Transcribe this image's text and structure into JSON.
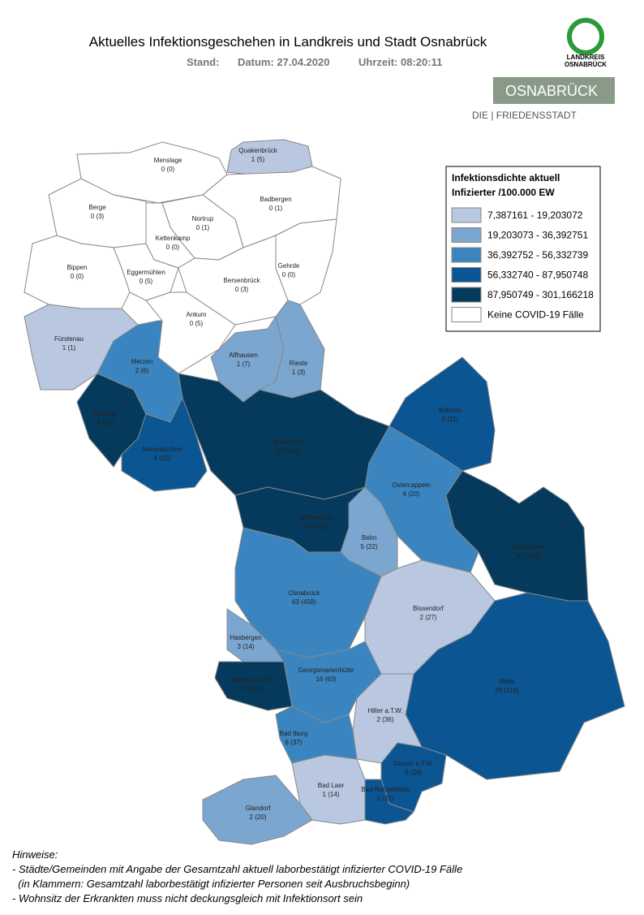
{
  "header": {
    "title": "Aktuelles Infektionsgeschehen in Landkreis und Stadt Osnabrück",
    "stand": "Stand:",
    "datum": "Datum: 27.04.2020",
    "uhrzeit": "Uhrzeit: 08:20:11"
  },
  "logo": {
    "line1": "LANDKREIS",
    "line2": "OSNABRÜCK",
    "city": "OSNABRÜCK",
    "motto": "DIE | FRIEDENSSTADT"
  },
  "legend": {
    "title1": "Infektionsdichte aktuell",
    "title2": "Infizierter /100.000 EW",
    "items": [
      {
        "label": "7,387161 - 19,203072",
        "color": "#b9c8e0"
      },
      {
        "label": "19,203073 - 36,392751",
        "color": "#7ba6d0"
      },
      {
        "label": "36,392752 - 56,332739",
        "color": "#3a85bf"
      },
      {
        "label": "56,332740 - 87,950748",
        "color": "#0b5592"
      },
      {
        "label": "87,950749 - 301,166218",
        "color": "#063a5c"
      },
      {
        "label": "Keine COVID-19 Fälle",
        "color": "#ffffff"
      }
    ]
  },
  "regions": [
    {
      "name": "Menslage",
      "label": "0 (0)",
      "color": "#ffffff"
    },
    {
      "name": "Quakenbrück",
      "label": "1 (5)",
      "color": "#b9c8e0"
    },
    {
      "name": "Berge",
      "label": "0 (3)",
      "color": "#ffffff"
    },
    {
      "name": "Badbergen",
      "label": "0 (1)",
      "color": "#ffffff"
    },
    {
      "name": "Nortrup",
      "label": "0 (1)",
      "color": "#ffffff"
    },
    {
      "name": "Kettenkamp",
      "label": "0 (0)",
      "color": "#ffffff"
    },
    {
      "name": "Bippen",
      "label": "0 (0)",
      "color": "#ffffff"
    },
    {
      "name": "Eggermühlen",
      "label": "0 (5)",
      "color": "#ffffff"
    },
    {
      "name": "Bersenbrück",
      "label": "0 (3)",
      "color": "#ffffff"
    },
    {
      "name": "Gehrde",
      "label": "0 (0)",
      "color": "#ffffff"
    },
    {
      "name": "Ankum",
      "label": "0 (5)",
      "color": "#ffffff"
    },
    {
      "name": "Fürstenau",
      "label": "1 (1)",
      "color": "#b9c8e0"
    },
    {
      "name": "Merzen",
      "label": "2 (6)",
      "color": "#3a85bf"
    },
    {
      "name": "Alfhausen",
      "label": "1 (7)",
      "color": "#7ba6d0"
    },
    {
      "name": "Rieste",
      "label": "1 (3)",
      "color": "#7ba6d0"
    },
    {
      "name": "Voltlage",
      "label": "5 (11)",
      "color": "#063a5c"
    },
    {
      "name": "Neuenkirchen",
      "label": "4 (15)",
      "color": "#0b5592"
    },
    {
      "name": "Bramsche",
      "label": "45 (114)",
      "color": "#063a5c"
    },
    {
      "name": "Bohmte",
      "label": "8 (21)",
      "color": "#0b5592"
    },
    {
      "name": "Ostercappeln",
      "label": "4 (20)",
      "color": "#3a85bf"
    },
    {
      "name": "Bad Essen",
      "label": "47 (102)",
      "color": "#063a5c"
    },
    {
      "name": "Wallenhorst",
      "label": "27 (102)",
      "color": "#063a5c"
    },
    {
      "name": "Belm",
      "label": "5 (22)",
      "color": "#7ba6d0"
    },
    {
      "name": "Osnabrück",
      "label": "63 (458)",
      "color": "#3a85bf"
    },
    {
      "name": "Bissendorf",
      "label": "2 (27)",
      "color": "#b9c8e0"
    },
    {
      "name": "Hasbergen",
      "label": "3 (14)",
      "color": "#7ba6d0"
    },
    {
      "name": "Hagen a.T.W.",
      "label": "17 (83)",
      "color": "#063a5c"
    },
    {
      "name": "Georgsmarienhütte",
      "label": "16 (63)",
      "color": "#3a85bf"
    },
    {
      "name": "Melle",
      "label": "29 (116)",
      "color": "#0b5592"
    },
    {
      "name": "Hilter a.T.W.",
      "label": "2 (36)",
      "color": "#b9c8e0"
    },
    {
      "name": "Bad Iburg",
      "label": "6 (37)",
      "color": "#3a85bf"
    },
    {
      "name": "Dissen a.T.W.",
      "label": "6 (28)",
      "color": "#0b5592"
    },
    {
      "name": "Bad Laer",
      "label": "1 (14)",
      "color": "#b9c8e0"
    },
    {
      "name": "Bad Rothenfelde",
      "label": "5 (32)",
      "color": "#0b5592"
    },
    {
      "name": "Glandorf",
      "label": "2 (20)",
      "color": "#7ba6d0"
    }
  ],
  "notes": {
    "heading": "Hinweise:",
    "lines": [
      "- Städte/Gemeinden mit Angabe der Gesamtzahl aktuell laborbestätigt infizierter COVID-19 Fälle",
      "  (in Klammern: Gesamtzahl laborbestätigt infizierter Personen seit Ausbruchsbeginn)",
      "- Wohnsitz der Erkrankten muss nicht deckungsgleich mit Infektionsort sein"
    ]
  }
}
